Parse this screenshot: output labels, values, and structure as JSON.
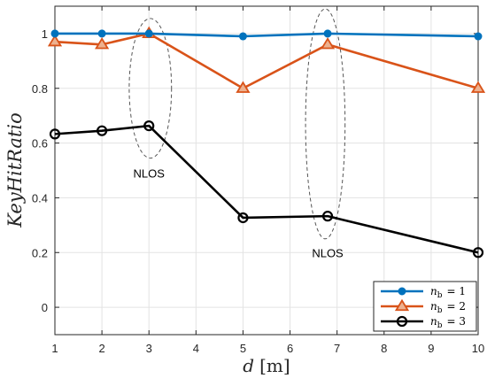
{
  "chart_data": {
    "type": "line",
    "xlabel": "d",
    "xlabel_unit": "[m]",
    "ylabel": "KeyHitRatio",
    "xlim": [
      1,
      10
    ],
    "ylim": [
      -0.1,
      1.1
    ],
    "xticks": [
      1,
      2,
      3,
      4,
      5,
      6,
      7,
      8,
      9,
      10
    ],
    "yticks": [
      0,
      0.2,
      0.4,
      0.6,
      0.8,
      1
    ],
    "ytick_labels": [
      "0",
      "0.2",
      "0.4",
      "0.6",
      "0.8",
      "1"
    ],
    "grid": true,
    "legend_position": "bottom-right",
    "series": [
      {
        "name": "n_b = 1",
        "legend_var": "n",
        "legend_sub": "b",
        "legend_rest": "= 1",
        "color": "#0072BD",
        "marker": "filled-circle",
        "x": [
          1,
          2,
          3,
          5,
          6.8,
          10
        ],
        "y": [
          1.0,
          1.0,
          1.0,
          0.99,
          1.0,
          0.99
        ]
      },
      {
        "name": "n_b = 2",
        "legend_var": "n",
        "legend_sub": "b",
        "legend_rest": "= 2",
        "color": "#D95319",
        "marker": "triangle",
        "x": [
          1,
          2,
          3,
          5,
          6.8,
          10
        ],
        "y": [
          0.97,
          0.96,
          1.0,
          0.8,
          0.96,
          0.8
        ]
      },
      {
        "name": "n_b = 3",
        "legend_var": "n",
        "legend_sub": "b",
        "legend_rest": "= 3",
        "color": "#000000",
        "marker": "open-circle",
        "x": [
          1,
          2,
          3,
          5,
          6.8,
          10
        ],
        "y": [
          0.633,
          0.645,
          0.663,
          0.327,
          0.333,
          0.2
        ]
      }
    ],
    "annotations": [
      {
        "text": "NLOS",
        "x": 3,
        "y": 0.49,
        "ellipse_cx": 3.03,
        "ellipse_cy": 0.8,
        "ellipse_rx": 0.45,
        "ellipse_ry": 0.255
      },
      {
        "text": "NLOS",
        "x": 6.8,
        "y": 0.2,
        "ellipse_cx": 6.75,
        "ellipse_cy": 0.67,
        "ellipse_rx": 0.42,
        "ellipse_ry": 0.42
      }
    ]
  }
}
